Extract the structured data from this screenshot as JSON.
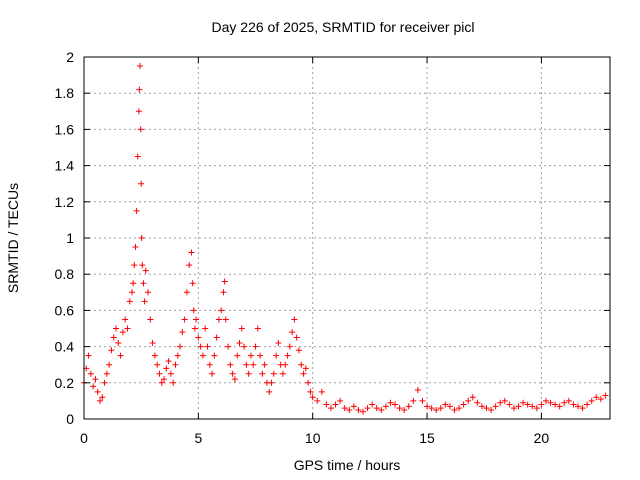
{
  "chart_data": {
    "type": "scatter",
    "title": "Day 226 of 2025, SRMTID for receiver picl",
    "xlabel": "GPS time / hours",
    "ylabel": "SRMTID / TECUs",
    "xlim": [
      0,
      23
    ],
    "ylim": [
      0,
      2
    ],
    "xticks": [
      0,
      5,
      10,
      15,
      20
    ],
    "xtick_labels": [
      "0",
      "5",
      "10",
      "15",
      "20"
    ],
    "yticks": [
      0,
      0.2,
      0.4,
      0.6,
      0.8,
      1,
      1.2,
      1.4,
      1.6,
      1.8,
      2
    ],
    "ytick_labels": [
      "0",
      "0.2",
      "0.4",
      "0.6",
      "0.8",
      "1",
      "1.2",
      "1.4",
      "1.6",
      "1.8",
      "2"
    ],
    "grid": true,
    "marker": "+",
    "series": [
      {
        "name": "SRMTID",
        "color": "#ff0000",
        "x": [
          0.0,
          0.1,
          0.2,
          0.3,
          0.4,
          0.5,
          0.6,
          0.7,
          0.8,
          0.9,
          1.0,
          1.1,
          1.2,
          1.3,
          1.4,
          1.5,
          1.6,
          1.7,
          1.8,
          1.9,
          2.0,
          2.1,
          2.15,
          2.2,
          2.25,
          2.3,
          2.35,
          2.4,
          2.42,
          2.45,
          2.48,
          2.5,
          2.52,
          2.55,
          2.6,
          2.65,
          2.7,
          2.8,
          2.9,
          3.0,
          3.1,
          3.2,
          3.3,
          3.4,
          3.5,
          3.6,
          3.7,
          3.8,
          3.9,
          4.0,
          4.1,
          4.2,
          4.3,
          4.4,
          4.5,
          4.6,
          4.7,
          4.75,
          4.8,
          4.85,
          4.9,
          5.0,
          5.1,
          5.2,
          5.3,
          5.4,
          5.5,
          5.6,
          5.7,
          5.8,
          5.9,
          6.0,
          6.1,
          6.15,
          6.2,
          6.3,
          6.4,
          6.5,
          6.6,
          6.7,
          6.8,
          6.9,
          7.0,
          7.1,
          7.2,
          7.3,
          7.4,
          7.5,
          7.6,
          7.7,
          7.8,
          7.9,
          8.0,
          8.1,
          8.2,
          8.3,
          8.4,
          8.5,
          8.6,
          8.7,
          8.8,
          8.9,
          9.0,
          9.1,
          9.2,
          9.3,
          9.4,
          9.5,
          9.6,
          9.7,
          9.8,
          9.9,
          10.0,
          10.2,
          10.4,
          10.6,
          10.8,
          11.0,
          11.2,
          11.4,
          11.6,
          11.8,
          12.0,
          12.2,
          12.4,
          12.6,
          12.8,
          13.0,
          13.2,
          13.4,
          13.6,
          13.8,
          14.0,
          14.2,
          14.4,
          14.6,
          14.8,
          15.0,
          15.2,
          15.4,
          15.6,
          15.8,
          16.0,
          16.2,
          16.4,
          16.6,
          16.8,
          17.0,
          17.2,
          17.4,
          17.6,
          17.8,
          18.0,
          18.2,
          18.4,
          18.6,
          18.8,
          19.0,
          19.2,
          19.4,
          19.6,
          19.8,
          20.0,
          20.2,
          20.4,
          20.6,
          20.8,
          21.0,
          21.2,
          21.4,
          21.6,
          21.8,
          22.0,
          22.2,
          22.4,
          22.6,
          22.8
        ],
        "y": [
          0.2,
          0.28,
          0.35,
          0.25,
          0.18,
          0.22,
          0.15,
          0.1,
          0.12,
          0.2,
          0.25,
          0.3,
          0.38,
          0.45,
          0.5,
          0.42,
          0.35,
          0.48,
          0.55,
          0.5,
          0.65,
          0.7,
          0.75,
          0.85,
          0.95,
          1.15,
          1.45,
          1.7,
          1.82,
          1.95,
          1.6,
          1.3,
          1.0,
          0.85,
          0.75,
          0.65,
          0.82,
          0.7,
          0.55,
          0.42,
          0.35,
          0.3,
          0.25,
          0.2,
          0.22,
          0.28,
          0.32,
          0.25,
          0.2,
          0.3,
          0.35,
          0.4,
          0.48,
          0.55,
          0.7,
          0.85,
          0.92,
          0.75,
          0.6,
          0.5,
          0.55,
          0.45,
          0.4,
          0.35,
          0.5,
          0.4,
          0.3,
          0.25,
          0.35,
          0.45,
          0.55,
          0.6,
          0.7,
          0.76,
          0.55,
          0.4,
          0.3,
          0.25,
          0.22,
          0.35,
          0.42,
          0.5,
          0.4,
          0.3,
          0.25,
          0.35,
          0.3,
          0.4,
          0.5,
          0.35,
          0.25,
          0.3,
          0.2,
          0.15,
          0.2,
          0.25,
          0.35,
          0.42,
          0.3,
          0.25,
          0.3,
          0.35,
          0.4,
          0.48,
          0.55,
          0.45,
          0.38,
          0.3,
          0.25,
          0.28,
          0.2,
          0.15,
          0.12,
          0.1,
          0.15,
          0.08,
          0.06,
          0.08,
          0.1,
          0.06,
          0.05,
          0.07,
          0.05,
          0.04,
          0.06,
          0.08,
          0.06,
          0.05,
          0.07,
          0.09,
          0.08,
          0.06,
          0.05,
          0.07,
          0.1,
          0.16,
          0.1,
          0.07,
          0.06,
          0.05,
          0.06,
          0.08,
          0.07,
          0.05,
          0.06,
          0.08,
          0.1,
          0.12,
          0.09,
          0.07,
          0.06,
          0.05,
          0.07,
          0.09,
          0.1,
          0.08,
          0.06,
          0.07,
          0.09,
          0.08,
          0.07,
          0.06,
          0.08,
          0.1,
          0.09,
          0.08,
          0.07,
          0.09,
          0.1,
          0.08,
          0.07,
          0.06,
          0.08,
          0.1,
          0.12,
          0.11,
          0.13
        ]
      }
    ]
  }
}
